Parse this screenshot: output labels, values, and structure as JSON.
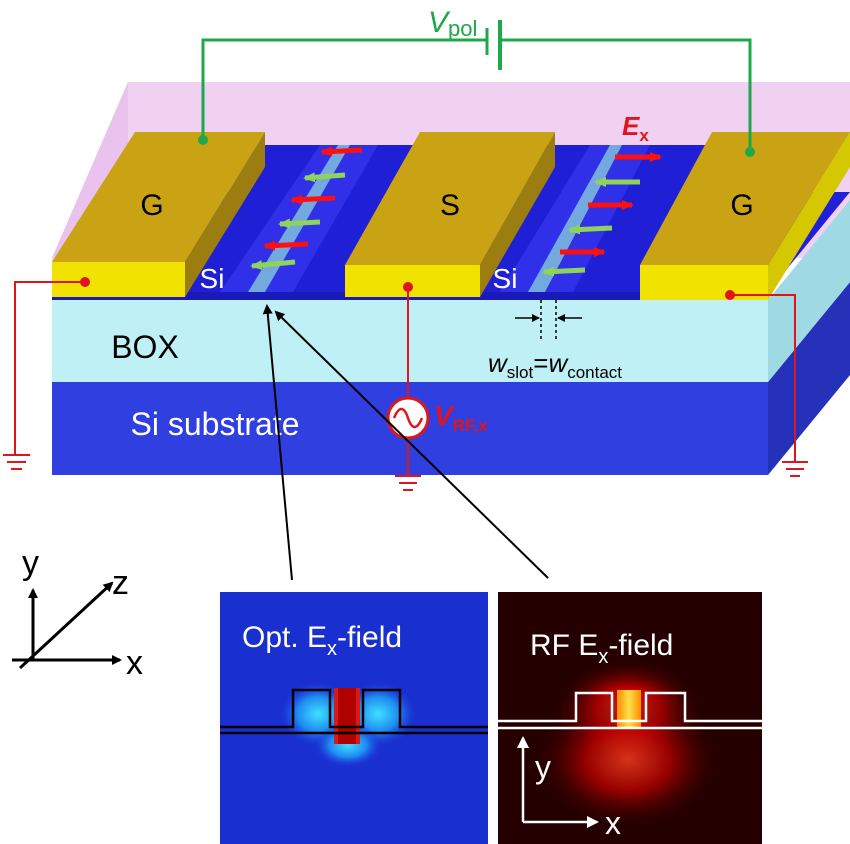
{
  "labels": {
    "ground_left": "G",
    "signal": "S",
    "ground_right": "G",
    "si_left": "Si",
    "si_right": "Si",
    "box": "BOX",
    "substrate": "Si substrate",
    "vpol_main": "V",
    "vpol_sub": "pol",
    "ex_main": "E",
    "ex_sub": "x",
    "vrf_main": "V",
    "vrf_sub": "RF,x",
    "w_slot_main": "w",
    "w_slot_sub": "slot",
    "equals": "=",
    "w_contact_main": "w",
    "w_contact_sub": "contact"
  },
  "axes3d": {
    "y": "y",
    "z": "z",
    "x": "x"
  },
  "inset_optical": {
    "title_pre": "Opt. E",
    "title_sub": "x",
    "title_post": "-field"
  },
  "inset_rf": {
    "title_pre": "RF E",
    "title_sub": "x",
    "title_post": "-field",
    "axis_y": "y",
    "axis_x": "x"
  },
  "colors": {
    "electrode_top": "#c9a313",
    "electrode_side": "#f2e200",
    "si_dark": "#1f1fd6",
    "box": "#bff0f5",
    "substrate": "#2f3fe0",
    "cladding": "#eec9f0",
    "dc_wire": "#1fa84a",
    "rf_wire": "#e0141c",
    "arrow_red": "#ff1010",
    "arrow_green": "#8fd35a"
  }
}
